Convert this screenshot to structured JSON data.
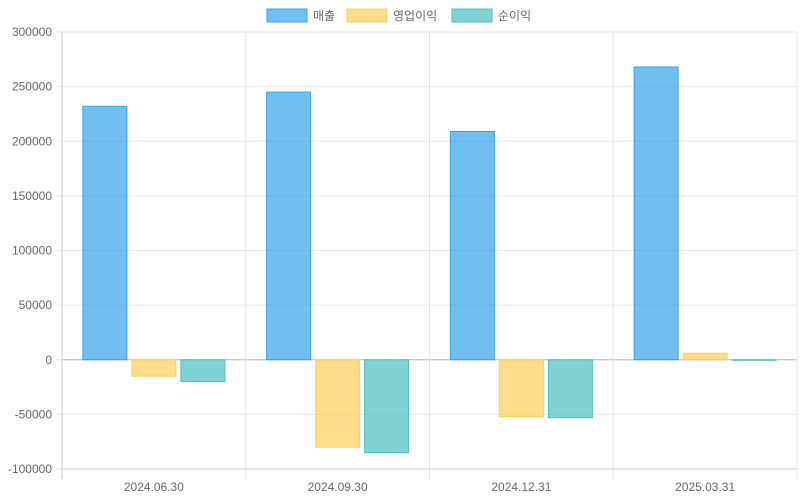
{
  "chart_data": {
    "type": "bar",
    "categories": [
      "2024.06.30",
      "2024.09.30",
      "2024.12.31",
      "2025.03.31"
    ],
    "series": [
      {
        "name": "매출",
        "values": [
          232000,
          245000,
          209000,
          268000
        ],
        "fill": "#36a2eb",
        "stroke": "#36a2eb"
      },
      {
        "name": "영업이익",
        "values": [
          -15000,
          -80000,
          -52000,
          6000
        ],
        "fill": "#ffcd56",
        "stroke": "#ffcd56"
      },
      {
        "name": "순이익",
        "values": [
          -20000,
          -85000,
          -53000,
          -500
        ],
        "fill": "#4bc0c0",
        "stroke": "#4bc0c0"
      }
    ],
    "ylim": [
      -100000,
      300000
    ],
    "yticks": [
      300000,
      250000,
      200000,
      150000,
      100000,
      50000,
      0,
      -50000,
      -100000
    ],
    "title": "",
    "xlabel": "",
    "ylabel": "",
    "grid": true,
    "legend_position": "top-center"
  }
}
